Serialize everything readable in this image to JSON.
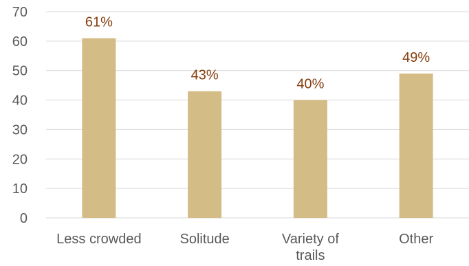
{
  "chart_data": {
    "type": "bar",
    "title": "",
    "xlabel": "",
    "ylabel": "",
    "categories": [
      [
        "Less crowded"
      ],
      [
        "Solitude"
      ],
      [
        "Variety of",
        "trails"
      ],
      [
        "Other"
      ]
    ],
    "values": [
      61,
      43,
      40,
      49
    ],
    "data_labels": [
      "61%",
      "43%",
      "40%",
      "49%"
    ],
    "ylim": [
      0,
      70
    ],
    "yticks": [
      0,
      10,
      20,
      30,
      40,
      50,
      60,
      70
    ],
    "grid": true,
    "legend": "none",
    "colors": {
      "bar": "#d4bc86",
      "data_label": "#843c0c",
      "axis_text": "#595959",
      "gridline": "#d9d9d9"
    }
  }
}
